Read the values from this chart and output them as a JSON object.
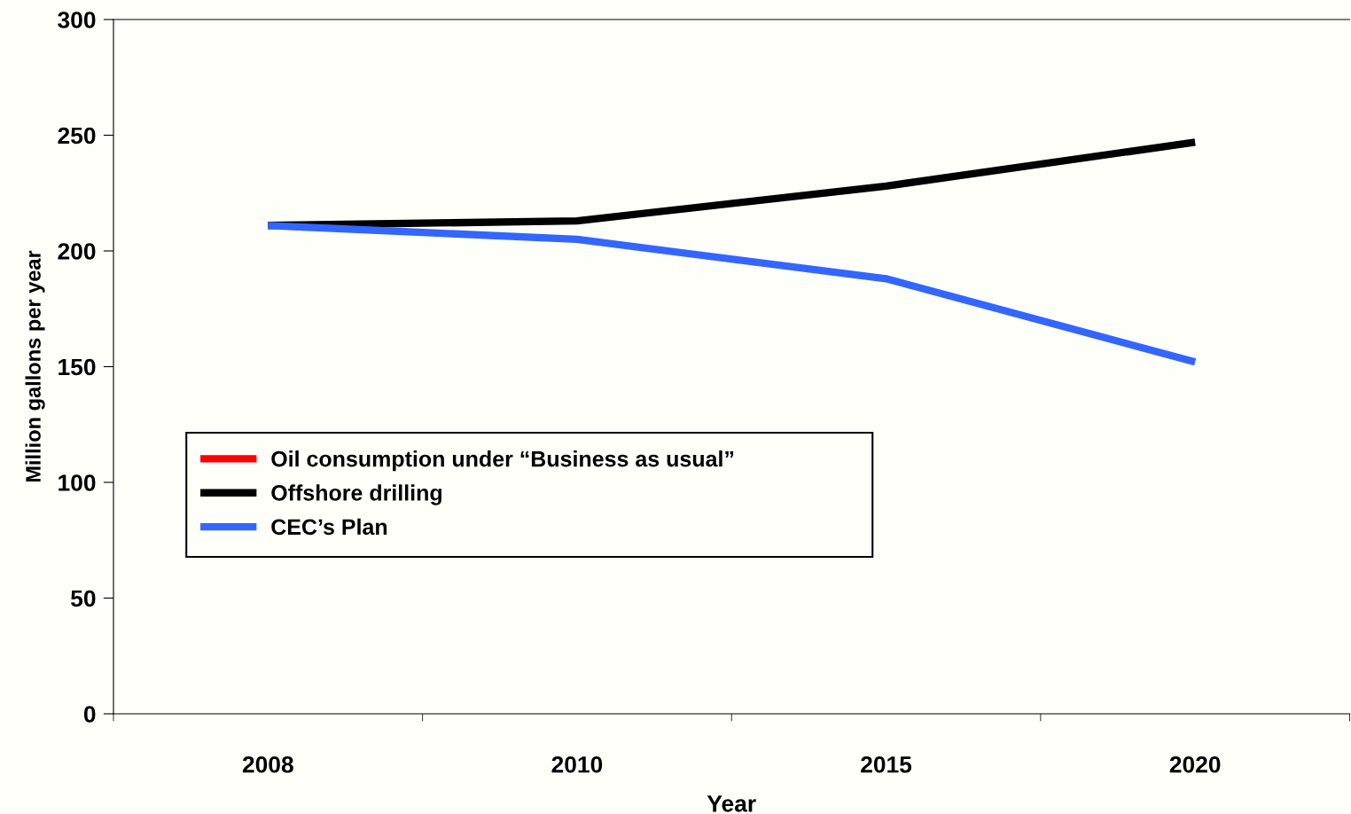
{
  "chart_data": {
    "type": "line",
    "xlabel": "Year",
    "ylabel": "Million gallons per year",
    "categories": [
      "2008",
      "2010",
      "2015",
      "2020"
    ],
    "ylim": [
      0,
      300
    ],
    "yticks": [
      0,
      50,
      100,
      150,
      200,
      250,
      300
    ],
    "grid": false,
    "legend": "left",
    "line_style": "solid",
    "marker": "none",
    "series": [
      {
        "name": "Oil consumption under “Business as usual”",
        "color": "#ff0000",
        "values": [
          null,
          null,
          null,
          null
        ]
      },
      {
        "name": "Offshore drilling",
        "color": "#000000",
        "values": [
          211,
          213,
          228,
          247
        ]
      },
      {
        "name": "CEC’s Plan",
        "color": "#3366ff",
        "values": [
          211,
          205,
          188,
          152
        ]
      }
    ]
  }
}
